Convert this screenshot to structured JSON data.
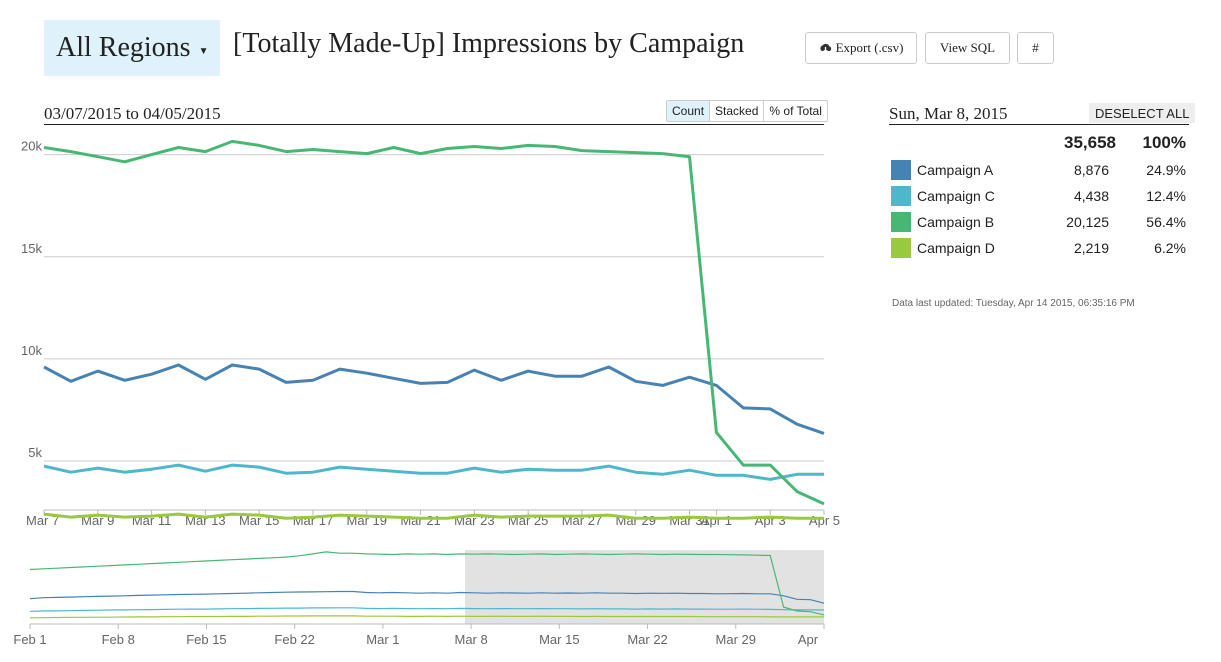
{
  "header": {
    "region_label": "All Regions",
    "title": "[Totally Made-Up] Impressions by Campaign",
    "export_label": "Export (.csv)",
    "view_sql_label": "View SQL",
    "hash_label": "#"
  },
  "chart": {
    "date_range": "03/07/2015 to 04/05/2015",
    "modes": [
      "Count",
      "Stacked",
      "% of Total"
    ],
    "active_mode": "Count"
  },
  "panel": {
    "date": "Sun, Mar 8, 2015",
    "deselect_label": "DESELECT ALL",
    "total_count": "35,658",
    "total_pct": "100%",
    "rows": [
      {
        "name": "Campaign A",
        "count": "8,876",
        "pct": "24.9%",
        "color": "#4682b4"
      },
      {
        "name": "Campaign C",
        "count": "4,438",
        "pct": "12.4%",
        "color": "#4db8cc"
      },
      {
        "name": "Campaign B",
        "count": "20,125",
        "pct": "56.4%",
        "color": "#47b873"
      },
      {
        "name": "Campaign D",
        "count": "2,219",
        "pct": "6.2%",
        "color": "#99c93d"
      }
    ],
    "updated": "Data last updated: Tuesday, Apr 14 2015, 06:35:16 PM"
  },
  "chart_data": [
    {
      "type": "line",
      "x_start": "2015-03-07",
      "x_labels": [
        "Mar 7",
        "Mar 9",
        "Mar 11",
        "Mar 13",
        "Mar 15",
        "Mar 17",
        "Mar 19",
        "Mar 21",
        "Mar 23",
        "Mar 25",
        "Mar 27",
        "Mar 29",
        "Mar 31",
        "Apr 1",
        "Apr 3",
        "Apr 5"
      ],
      "y_ticks": [
        5000,
        10000,
        15000,
        20000
      ],
      "y_tick_labels": [
        "5k",
        "10k",
        "15k",
        "20k"
      ],
      "ylim": [
        2600,
        21500
      ],
      "grid": true,
      "series": [
        {
          "name": "Campaign A",
          "color": "#4682b4",
          "values": [
            9600,
            8900,
            9400,
            8950,
            9250,
            9700,
            9000,
            9700,
            9500,
            8850,
            8950,
            9500,
            9300,
            9050,
            8800,
            8850,
            9450,
            8950,
            9400,
            9150,
            9150,
            9600,
            8900,
            8700,
            9100,
            8700,
            7600,
            7550,
            6800,
            6350
          ]
        },
        {
          "name": "Campaign C",
          "color": "#4db8cc",
          "values": [
            4750,
            4450,
            4650,
            4450,
            4600,
            4800,
            4500,
            4800,
            4700,
            4400,
            4450,
            4700,
            4600,
            4500,
            4400,
            4400,
            4650,
            4450,
            4600,
            4550,
            4550,
            4750,
            4450,
            4350,
            4550,
            4300,
            4300,
            4100,
            4350,
            4350
          ]
        },
        {
          "name": "Campaign B",
          "color": "#47b873",
          "values": [
            20350,
            20150,
            19900,
            19650,
            20000,
            20350,
            20150,
            20650,
            20450,
            20150,
            20250,
            20150,
            20050,
            20350,
            20050,
            20300,
            20400,
            20300,
            20450,
            20400,
            20200,
            20150,
            20100,
            20050,
            19900,
            6400,
            4800,
            4800,
            3500,
            2900
          ]
        },
        {
          "name": "Campaign D",
          "color": "#99c93d",
          "values": [
            2400,
            2250,
            2350,
            2250,
            2300,
            2400,
            2250,
            2400,
            2350,
            2200,
            2250,
            2350,
            2300,
            2250,
            2200,
            2200,
            2350,
            2250,
            2300,
            2300,
            2300,
            2350,
            2200,
            2200,
            2250,
            2200,
            2200,
            2250,
            2200,
            2200
          ]
        }
      ]
    },
    {
      "type": "line",
      "x_labels": [
        "Feb 1",
        "Feb 8",
        "Feb 15",
        "Feb 22",
        "Mar 1",
        "Mar 8",
        "Mar 15",
        "Mar 22",
        "Mar 29",
        "Apr"
      ],
      "brush_x": [
        "Mar 7",
        "Apr 5"
      ],
      "series": [
        {
          "name": "Campaign A",
          "color": "#4682b4",
          "values": [
            7800,
            8100,
            8200,
            8300,
            8400,
            8500,
            8600,
            8700,
            8800,
            8900,
            9000,
            9100,
            9150,
            9200,
            9300,
            9400,
            9500,
            9600,
            9700,
            9800,
            9850,
            9900,
            9950,
            10000,
            10000,
            9700,
            9600,
            9700,
            9600,
            9500,
            9600,
            9500,
            9700,
            9600,
            9500,
            9600,
            9550,
            9500,
            9600,
            9500,
            9550,
            9500,
            9600,
            9500,
            9500,
            9400,
            9500,
            9450,
            9500,
            9400,
            9400,
            9300,
            9350,
            9400,
            9300,
            9300,
            8700,
            7600,
            7500,
            6400
          ]
        },
        {
          "name": "Campaign C",
          "color": "#4db8cc",
          "values": [
            3900,
            4000,
            4050,
            4100,
            4200,
            4250,
            4300,
            4350,
            4400,
            4450,
            4500,
            4550,
            4600,
            4600,
            4650,
            4700,
            4750,
            4800,
            4850,
            4900,
            4900,
            4950,
            4950,
            5000,
            5000,
            4800,
            4750,
            4800,
            4750,
            4700,
            4750,
            4700,
            4800,
            4750,
            4700,
            4750,
            4700,
            4700,
            4750,
            4700,
            4700,
            4650,
            4700,
            4650,
            4650,
            4600,
            4650,
            4600,
            4650,
            4600,
            4600,
            4550,
            4550,
            4600,
            4550,
            4500,
            4400,
            4350,
            4350,
            4300
          ]
        },
        {
          "name": "Campaign B",
          "color": "#47b873",
          "values": [
            16800,
            17000,
            17200,
            17400,
            17600,
            17800,
            18000,
            18200,
            18400,
            18600,
            18800,
            19000,
            19200,
            19400,
            19600,
            19800,
            20000,
            20200,
            20400,
            20600,
            21000,
            21600,
            22200,
            21800,
            21800,
            21600,
            21500,
            21400,
            21600,
            21500,
            21600,
            21400,
            21600,
            21500,
            21600,
            21500,
            21400,
            21500,
            21600,
            21400,
            21500,
            21600,
            21500,
            21400,
            21500,
            21600,
            21500,
            21400,
            21500,
            21450,
            21400,
            21400,
            21350,
            21300,
            21200,
            21100,
            5200,
            4000,
            3800,
            2800
          ]
        },
        {
          "name": "Campaign D",
          "color": "#99c93d",
          "values": [
            1900,
            1950,
            2000,
            2050,
            2050,
            2100,
            2100,
            2150,
            2200,
            2200,
            2250,
            2250,
            2300,
            2300,
            2300,
            2350,
            2350,
            2400,
            2400,
            2450,
            2450,
            2500,
            2500,
            2500,
            2500,
            2400,
            2400,
            2400,
            2350,
            2350,
            2400,
            2350,
            2400,
            2350,
            2350,
            2400,
            2350,
            2350,
            2400,
            2350,
            2350,
            2300,
            2350,
            2300,
            2300,
            2300,
            2300,
            2300,
            2300,
            2300,
            2250,
            2250,
            2250,
            2250,
            2250,
            2200,
            2200,
            2200,
            2200,
            2200
          ]
        }
      ]
    }
  ]
}
